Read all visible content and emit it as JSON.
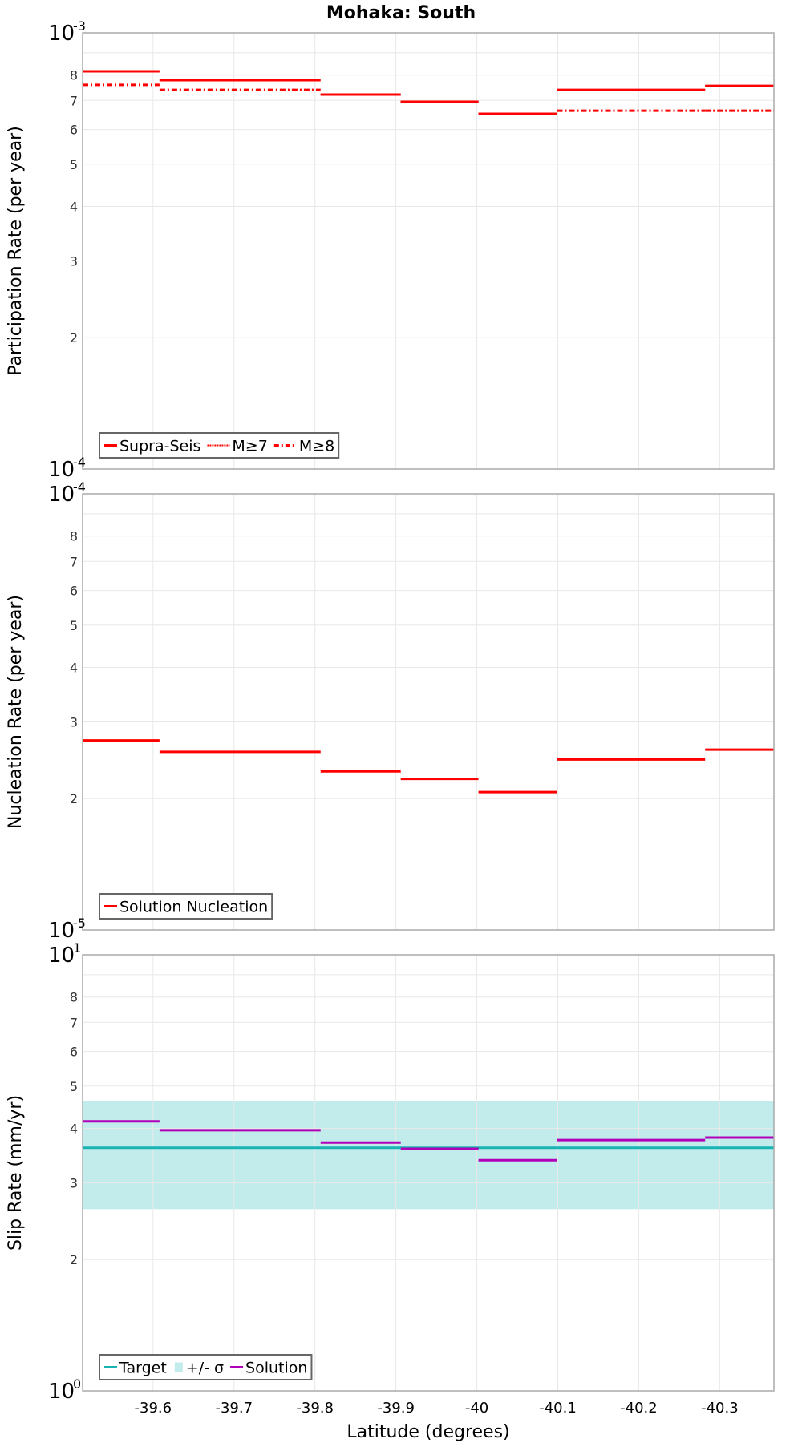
{
  "title": "Mohaka: South",
  "x_axis": {
    "label": "Latitude (degrees)",
    "min": -39.513,
    "max": -40.367,
    "ticks": [
      -39.6,
      -39.7,
      -39.8,
      -39.9,
      -40,
      -40.1,
      -40.2,
      -40.3
    ],
    "tick_labels": [
      "-39.6",
      "-39.7",
      "-39.8",
      "-39.9",
      "-40",
      "-40.1",
      "-40.2",
      "-40.3"
    ]
  },
  "colors": {
    "red": "#ff0000",
    "target": "#19b3b3",
    "band": "#c2ecec",
    "solution": "#b000b8",
    "grid": "#e8e8e8",
    "frame": "#aaaaaa",
    "legend_border": "#666666"
  },
  "chart_data": [
    {
      "type": "line",
      "subtype": "step",
      "title": "Mohaka: South",
      "xlabel": "Latitude (degrees)",
      "ylabel": "Participation Rate (per year)",
      "yscale": "log",
      "ylim": [
        0.0001,
        0.001
      ],
      "y_decade_labels": {
        "top": {
          "base": "10",
          "exp": "-3"
        },
        "bottom": {
          "base": "10",
          "exp": "-4"
        }
      },
      "y_minor_tick_labels": [
        "2",
        "3",
        "4",
        "5",
        "6",
        "7",
        "8"
      ],
      "legend_position": "lower-left",
      "segment_edges": [
        -39.513,
        -39.608,
        -39.807,
        -39.906,
        -40.002,
        -40.099,
        -40.282,
        -40.367
      ],
      "series": [
        {
          "name": "Supra-Seis",
          "style": "solid",
          "color": "#ff0000",
          "values": [
            0.000816,
            0.000779,
            0.000722,
            0.000695,
            0.000652,
            0.00074,
            0.000756
          ]
        },
        {
          "name": "M≥7",
          "style": "dotted",
          "color": "#ff0000",
          "values": [
            0.000816,
            0.000779,
            0.000722,
            0.000695,
            0.000652,
            0.00074,
            0.000756
          ]
        },
        {
          "name": "M≥8",
          "style": "dashdot",
          "color": "#ff0000",
          "values": [
            0.00076,
            0.00074,
            0.000722,
            0.000695,
            0.000652,
            0.000663,
            0.000663
          ]
        }
      ]
    },
    {
      "type": "line",
      "subtype": "step",
      "xlabel": "Latitude (degrees)",
      "ylabel": "Nucleation Rate (per year)",
      "yscale": "log",
      "ylim": [
        1e-05,
        0.0001
      ],
      "y_decade_labels": {
        "top": {
          "base": "10",
          "exp": "-4"
        },
        "bottom": {
          "base": "10",
          "exp": "-5"
        }
      },
      "y_minor_tick_labels": [
        "2",
        "3",
        "4",
        "5",
        "6",
        "7",
        "8"
      ],
      "legend_position": "lower-left",
      "segment_edges": [
        -39.513,
        -39.608,
        -39.807,
        -39.906,
        -40.002,
        -40.099,
        -40.282,
        -40.367
      ],
      "series": [
        {
          "name": "Solution Nucleation",
          "style": "solid",
          "color": "#ff0000",
          "values": [
            2.72e-05,
            2.56e-05,
            2.31e-05,
            2.22e-05,
            2.07e-05,
            2.46e-05,
            2.59e-05
          ]
        }
      ]
    },
    {
      "type": "line",
      "subtype": "step",
      "xlabel": "Latitude (degrees)",
      "ylabel": "Slip Rate (mm/yr)",
      "yscale": "log",
      "ylim": [
        1,
        10
      ],
      "y_decade_labels": {
        "top": {
          "base": "10",
          "exp": "1"
        },
        "bottom": {
          "base": "10",
          "exp": "0"
        }
      },
      "y_minor_tick_labels": [
        "2",
        "3",
        "4",
        "5",
        "6",
        "7",
        "8"
      ],
      "legend_position": "lower-left",
      "segment_edges": [
        -39.513,
        -39.608,
        -39.807,
        -39.906,
        -40.002,
        -40.099,
        -40.282,
        -40.367
      ],
      "series": [
        {
          "name": "Target",
          "style": "solid",
          "color": "#19b3b3",
          "value": 3.61
        },
        {
          "name": "+/- σ",
          "style": "band",
          "color": "#c2ecec",
          "lower": 2.61,
          "upper": 4.61
        },
        {
          "name": "Solution",
          "style": "solid",
          "color": "#b000b8",
          "values": [
            4.15,
            3.96,
            3.71,
            3.59,
            3.38,
            3.76,
            3.81
          ]
        }
      ]
    }
  ]
}
